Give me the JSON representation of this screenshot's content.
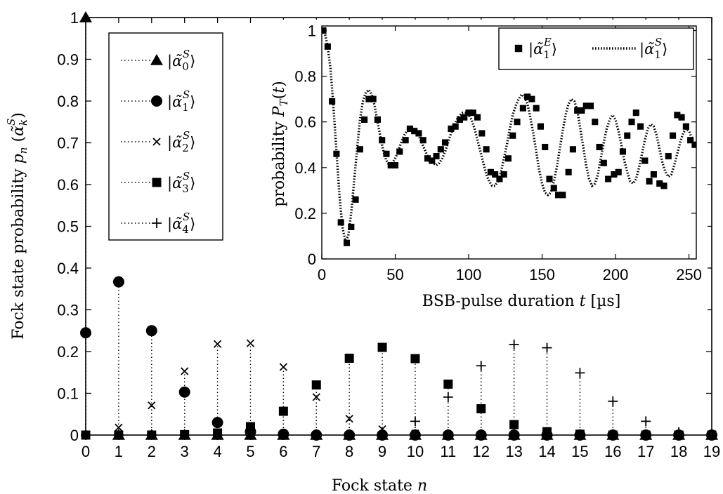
{
  "chart_data": [
    {
      "type": "scatter",
      "style": "stem",
      "xlabel": "Fock state n",
      "ylabel": "Fock state probability p_n (α̃_k^S)",
      "xlim": [
        0,
        19
      ],
      "ylim": [
        0,
        1
      ],
      "x_ticks": [
        0,
        1,
        2,
        3,
        4,
        5,
        6,
        7,
        8,
        9,
        10,
        11,
        12,
        13,
        14,
        15,
        16,
        17,
        18,
        19
      ],
      "y_ticks": [
        0,
        0.1,
        0.2,
        0.3,
        0.4,
        0.5,
        0.6,
        0.7,
        0.8,
        0.9,
        1
      ],
      "legend_position": "top-left",
      "x": [
        0,
        1,
        2,
        3,
        4,
        5,
        6,
        7,
        8,
        9,
        10,
        11,
        12,
        13,
        14,
        15,
        16,
        17,
        18,
        19
      ],
      "series": [
        {
          "name": "|α̃_0^S⟩",
          "marker": "triangle",
          "values": [
            1,
            0,
            0,
            0,
            0,
            0,
            0,
            0,
            0,
            0,
            0,
            0,
            0,
            0,
            0,
            0,
            0,
            0,
            0,
            0
          ]
        },
        {
          "name": "|α̃_1^S⟩",
          "marker": "circle",
          "values": [
            0.245,
            0.367,
            0.25,
            0.103,
            0.03,
            0.008,
            0.002,
            0,
            0,
            0,
            0,
            0,
            0,
            0,
            0,
            0,
            0,
            0,
            0,
            0
          ]
        },
        {
          "name": "|α̃_2^S⟩",
          "marker": "x",
          "values": [
            0,
            0.018,
            0.071,
            0.153,
            0.218,
            0.22,
            0.163,
            0.091,
            0.039,
            0.014,
            0.004,
            0.001,
            0,
            0,
            0,
            0,
            0,
            0,
            0,
            0
          ]
        },
        {
          "name": "|α̃_3^S⟩",
          "marker": "square",
          "values": [
            0,
            0,
            0,
            0.001,
            0.005,
            0.02,
            0.057,
            0.12,
            0.184,
            0.21,
            0.183,
            0.122,
            0.063,
            0.025,
            0.008,
            0.002,
            0,
            0,
            0,
            0
          ]
        },
        {
          "name": "|α̃_4^S⟩",
          "marker": "plus",
          "values": [
            0,
            0,
            0,
            0,
            0,
            0,
            0,
            0,
            0,
            0.001,
            0.033,
            0.091,
            0.166,
            0.217,
            0.209,
            0.149,
            0.081,
            0.033,
            0.007,
            0.001
          ]
        }
      ]
    },
    {
      "type": "line",
      "xlabel": "BSB-pulse duration t [µs]",
      "ylabel": "probability P_T(t)",
      "xlim": [
        0,
        255
      ],
      "ylim": [
        0,
        1.02
      ],
      "x_ticks": [
        0,
        50,
        100,
        150,
        200,
        250
      ],
      "y_ticks": [
        0,
        0.2,
        0.4,
        0.6,
        0.8,
        1
      ],
      "legend_position": "top-right",
      "series": [
        {
          "name": "|α̃_1^E⟩",
          "marker": "square",
          "line": "none",
          "x": [
            1,
            4,
            7,
            10,
            13,
            17,
            20,
            23,
            26,
            29,
            32,
            35,
            38,
            41,
            44,
            47,
            50,
            53,
            57,
            60,
            63,
            66,
            69,
            72,
            75,
            78,
            81,
            84,
            88,
            91,
            94,
            97,
            100,
            103,
            106,
            109,
            112,
            115,
            118,
            121,
            124,
            127,
            130,
            133,
            137,
            140,
            143,
            146,
            149,
            152,
            155,
            158,
            161,
            164,
            168,
            171,
            174,
            177,
            180,
            183,
            186,
            189,
            192,
            195,
            199,
            202,
            205,
            208,
            211,
            214,
            217,
            220,
            223,
            226,
            230,
            233,
            236,
            239,
            242,
            245,
            248,
            251,
            254
          ],
          "y": [
            1.0,
            0.93,
            0.69,
            0.46,
            0.16,
            0.07,
            0.14,
            0.26,
            0.48,
            0.61,
            0.7,
            0.7,
            0.61,
            0.52,
            0.46,
            0.41,
            0.41,
            0.47,
            0.52,
            0.57,
            0.56,
            0.55,
            0.52,
            0.44,
            0.43,
            0.45,
            0.48,
            0.51,
            0.57,
            0.58,
            0.61,
            0.62,
            0.64,
            0.64,
            0.62,
            0.55,
            0.48,
            0.38,
            0.37,
            0.35,
            0.37,
            0.44,
            0.54,
            0.6,
            0.66,
            0.71,
            0.7,
            0.66,
            0.58,
            0.49,
            0.35,
            0.31,
            0.28,
            0.28,
            0.38,
            0.48,
            0.65,
            0.65,
            0.67,
            0.67,
            0.6,
            0.49,
            0.42,
            0.35,
            0.37,
            0.38,
            0.47,
            0.54,
            0.6,
            0.64,
            0.58,
            0.43,
            0.34,
            0.37,
            0.33,
            0.32,
            0.45,
            0.54,
            0.63,
            0.62,
            0.58,
            0.52,
            0.5
          ]
        },
        {
          "name": "|α̃_1^S⟩",
          "line": "dotted",
          "x": [
            0,
            2,
            4,
            6,
            8,
            10,
            12,
            14,
            16,
            18,
            20,
            22,
            24,
            26,
            28,
            30,
            32,
            34,
            36,
            38,
            40,
            42,
            44,
            46,
            48,
            50,
            52,
            54,
            56,
            58,
            60,
            62,
            64,
            66,
            68,
            70,
            72,
            74,
            76,
            78,
            80,
            82,
            84,
            86,
            88,
            90,
            92,
            94,
            96,
            98,
            100,
            102,
            104,
            106,
            108,
            110,
            112,
            114,
            116,
            118,
            120,
            122,
            124,
            126,
            128,
            130,
            132,
            134,
            136,
            138,
            140,
            142,
            144,
            146,
            148,
            150,
            152,
            154,
            156,
            158,
            160,
            162,
            164,
            166,
            168,
            170,
            172,
            174,
            176,
            178,
            180,
            182,
            184,
            186,
            188,
            190,
            192,
            194,
            196,
            198,
            200,
            202,
            204,
            206,
            208,
            210,
            212,
            214,
            216,
            218,
            220,
            222,
            224,
            226,
            228,
            230,
            232,
            234,
            236,
            238,
            240,
            242,
            244,
            246,
            248,
            250,
            252,
            254
          ],
          "y": [
            1.0,
            0.99,
            0.93,
            0.83,
            0.66,
            0.47,
            0.28,
            0.14,
            0.08,
            0.1,
            0.2,
            0.34,
            0.48,
            0.61,
            0.69,
            0.73,
            0.74,
            0.72,
            0.67,
            0.6,
            0.53,
            0.47,
            0.43,
            0.41,
            0.42,
            0.44,
            0.47,
            0.51,
            0.54,
            0.56,
            0.57,
            0.57,
            0.56,
            0.54,
            0.51,
            0.48,
            0.45,
            0.43,
            0.42,
            0.41,
            0.42,
            0.44,
            0.47,
            0.51,
            0.55,
            0.58,
            0.61,
            0.63,
            0.64,
            0.64,
            0.63,
            0.61,
            0.57,
            0.52,
            0.47,
            0.42,
            0.37,
            0.34,
            0.32,
            0.32,
            0.34,
            0.38,
            0.44,
            0.5,
            0.57,
            0.63,
            0.67,
            0.7,
            0.72,
            0.71,
            0.68,
            0.62,
            0.55,
            0.47,
            0.39,
            0.33,
            0.29,
            0.28,
            0.29,
            0.34,
            0.4,
            0.48,
            0.56,
            0.63,
            0.68,
            0.7,
            0.69,
            0.65,
            0.57,
            0.49,
            0.41,
            0.35,
            0.32,
            0.33,
            0.37,
            0.44,
            0.51,
            0.57,
            0.61,
            0.63,
            0.61,
            0.56,
            0.5,
            0.43,
            0.38,
            0.34,
            0.33,
            0.35,
            0.4,
            0.46,
            0.52,
            0.57,
            0.59,
            0.58,
            0.54,
            0.48,
            0.42,
            0.38,
            0.36,
            0.37,
            0.41,
            0.46,
            0.51,
            0.55,
            0.57,
            0.56,
            0.53,
            0.49
          ]
        }
      ]
    }
  ],
  "colors": {
    "ink": "#000000",
    "background": "#ffffff"
  }
}
